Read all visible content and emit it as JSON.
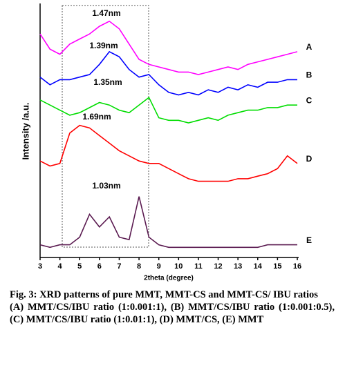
{
  "chart_data": {
    "type": "line",
    "xlabel": "2theta (degree)",
    "ylabel": "Intensity /a.u.",
    "x": [
      3,
      3.5,
      4,
      4.5,
      5,
      5.5,
      6,
      6.5,
      7,
      7.5,
      8,
      8.5,
      9,
      9.5,
      10,
      10.5,
      11,
      11.5,
      12,
      12.5,
      13,
      13.5,
      14,
      14.5,
      15,
      15.5,
      16
    ],
    "series": [
      {
        "name": "A",
        "color": "#ff00ff",
        "values": [
          88,
          82,
          80,
          84,
          86,
          88,
          91,
          93,
          90,
          84,
          78,
          76,
          75,
          74,
          73,
          73,
          72,
          73,
          74,
          75,
          74,
          76,
          77,
          78,
          79,
          80,
          81
        ]
      },
      {
        "name": "B",
        "color": "#0000ff",
        "values": [
          71,
          68,
          70,
          70,
          71,
          72,
          76,
          81,
          79,
          74,
          71,
          72,
          68,
          65,
          64,
          65,
          64,
          66,
          65,
          67,
          66,
          68,
          67,
          69,
          69,
          70,
          70
        ]
      },
      {
        "name": "C",
        "color": "#00dd00",
        "values": [
          62,
          60,
          58,
          56,
          57,
          59,
          61,
          60,
          58,
          57,
          60,
          63,
          55,
          54,
          54,
          53,
          54,
          55,
          54,
          56,
          57,
          58,
          58,
          59,
          59,
          60,
          60
        ]
      },
      {
        "name": "D",
        "color": "#ff0000",
        "values": [
          38,
          36,
          37,
          49,
          52,
          51,
          48,
          45,
          42,
          40,
          38,
          37,
          37,
          35,
          33,
          31,
          30,
          30,
          30,
          30,
          31,
          31,
          32,
          33,
          35,
          40,
          37
        ]
      },
      {
        "name": "E",
        "color": "#5a1a50",
        "values": [
          5,
          4,
          5,
          5,
          8,
          17,
          12,
          16,
          8,
          7,
          24,
          8,
          5,
          4,
          4,
          4,
          4,
          4,
          4,
          4,
          4,
          4,
          4,
          5,
          5,
          5,
          5
        ]
      }
    ],
    "annotations": [
      "1.47nm",
      "1.39nm",
      "1.35nm",
      "1.69nm",
      "1.03nm"
    ],
    "xlim": [
      3,
      16
    ],
    "xticks": [
      3,
      4,
      5,
      6,
      7,
      8,
      9,
      10,
      11,
      12,
      13,
      14,
      15,
      16
    ],
    "ylim": [
      0,
      100
    ],
    "caption": {
      "title": "Fig. 3: XRD patterns of pure MMT, MMT-CS and MMT-CS/ IBU ratios",
      "body": "(A) MMT/CS/IBU ratio (1:0.001:1), (B) MMT/CS/IBU ratio (1:0.001:0.5), (C) MMT/CS/IBU ratio (1:0.01:1), (D) MMT/CS, (E) MMT"
    }
  }
}
